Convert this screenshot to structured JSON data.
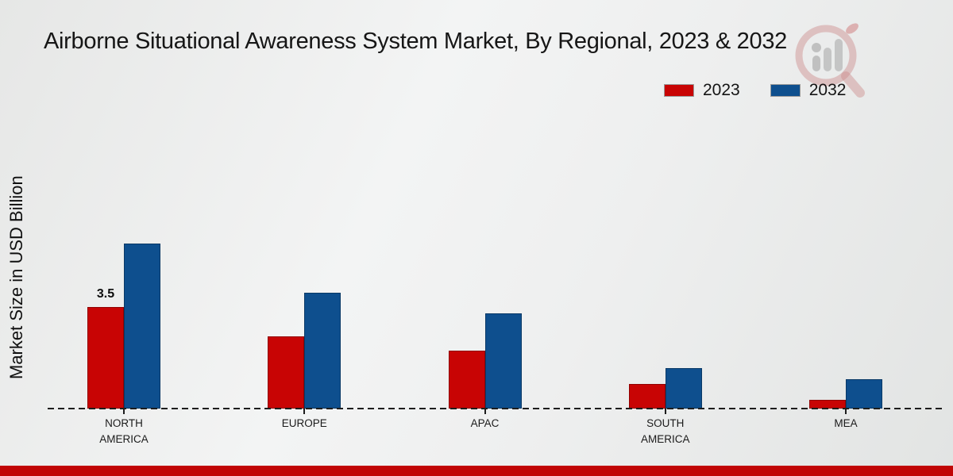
{
  "title": "Airborne Situational Awareness System Market, By Regional, 2023 & 2032",
  "legend": {
    "items": [
      {
        "label": "2023",
        "color": "#c80404"
      },
      {
        "label": "2032",
        "color": "#0e4f8e"
      }
    ]
  },
  "colors": {
    "series_2023_red": "#c80404",
    "series_2032_blue": "#0e4f8e",
    "footer_accent_red": "#c10505",
    "baseline_dash": "#1d1d1d"
  },
  "watermark_icon": "magnifier-bar-chart-logo",
  "chart_data": {
    "type": "bar",
    "title": "Airborne Situational Awareness System Market, By Regional, 2023 & 2032",
    "xlabel": "",
    "ylabel": "Market Size in USD Billion",
    "categories": [
      "NORTH AMERICA",
      "EUROPE",
      "APAC",
      "SOUTH AMERICA",
      "MEA"
    ],
    "series": [
      {
        "name": "2023",
        "color": "#c80404",
        "values": [
          3.5,
          2.5,
          2.0,
          0.85,
          0.3
        ]
      },
      {
        "name": "2032",
        "color": "#0e4f8e",
        "values": [
          5.7,
          4.0,
          3.3,
          1.4,
          1.0
        ]
      }
    ],
    "annotations": [
      {
        "text": "3.5",
        "category_index": 0,
        "series_index": 0
      }
    ],
    "ylim": [
      0,
      6
    ],
    "grid": false,
    "y_axis_ticks_visible": false,
    "baseline_style": "dashed",
    "legend_position": "top-right"
  }
}
